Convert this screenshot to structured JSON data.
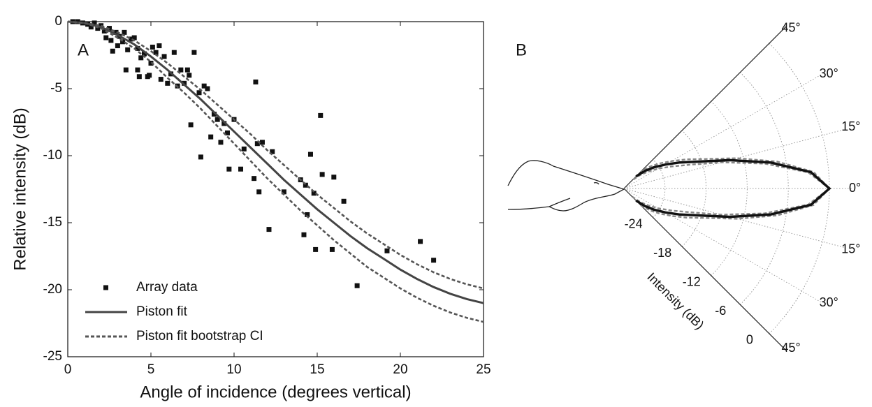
{
  "chart_data": [
    {
      "type": "line",
      "label": "A",
      "xlabel": "Angle of incidence (degrees vertical)",
      "ylabel": "Relative intensity (dB)",
      "xlim": [
        0,
        25
      ],
      "ylim": [
        -25,
        0
      ],
      "xticks": [
        0,
        5,
        10,
        15,
        20,
        25
      ],
      "yticks": [
        0,
        -5,
        -10,
        -15,
        -20,
        -25
      ],
      "legend": "lower left",
      "series": [
        {
          "name": "Array data",
          "color": "#111111",
          "style": "markers",
          "x": [
            0.3,
            0.6,
            0.9,
            1.2,
            1.4,
            1.6,
            1.8,
            2.0,
            2.2,
            2.3,
            2.5,
            2.6,
            2.7,
            2.9,
            3.0,
            3.1,
            3.3,
            3.4,
            3.5,
            3.6,
            3.8,
            4.0,
            4.2,
            4.2,
            4.3,
            4.4,
            4.6,
            4.8,
            4.9,
            5.0,
            5.1,
            5.3,
            5.5,
            5.6,
            5.8,
            6.0,
            6.2,
            6.4,
            6.6,
            6.8,
            7.0,
            7.2,
            7.3,
            7.4,
            7.6,
            7.9,
            8.0,
            8.2,
            8.4,
            8.6,
            8.8,
            9.0,
            9.2,
            9.4,
            9.6,
            9.7,
            10.0,
            10.4,
            10.6,
            11.2,
            11.3,
            11.4,
            11.5,
            11.7,
            12.1,
            12.3,
            13.0,
            14.0,
            14.2,
            14.3,
            14.4,
            14.6,
            14.8,
            14.9,
            15.2,
            15.3,
            15.9,
            16.0,
            16.6,
            17.4,
            19.2,
            21.2,
            22.0
          ],
          "values": [
            0,
            0,
            -0.1,
            -0.2,
            -0.4,
            -0.1,
            -0.5,
            -0.3,
            -0.7,
            -1.2,
            -0.5,
            -1.4,
            -2.2,
            -0.8,
            -1.8,
            -1.1,
            -1.5,
            -0.8,
            -3.6,
            -2.1,
            -1.3,
            -1.2,
            -2.0,
            -3.6,
            -4.1,
            -2.7,
            -2.4,
            -4.1,
            -4.0,
            -3.1,
            -1.9,
            -2.3,
            -1.8,
            -4.3,
            -2.6,
            -4.6,
            -3.9,
            -2.3,
            -4.8,
            -3.6,
            -4.6,
            -3.6,
            -4.0,
            -7.7,
            -2.3,
            -5.3,
            -10.1,
            -4.8,
            -5.0,
            -8.6,
            -6.9,
            -7.3,
            -9.0,
            -7.6,
            -8.3,
            -11.0,
            -7.3,
            -11.0,
            -9.5,
            -11.7,
            -4.5,
            -9.1,
            -12.7,
            -9.0,
            -15.5,
            -9.7,
            -12.7,
            -11.8,
            -15.9,
            -12.2,
            -14.4,
            -9.9,
            -12.8,
            -17.0,
            -7.0,
            -11.4,
            -17.0,
            -11.6,
            -13.4,
            -19.7,
            -17.1,
            -16.4,
            -17.8
          ]
        },
        {
          "name": "Piston fit",
          "color": "#444444",
          "style": "solid",
          "x": [
            0,
            1,
            2,
            3,
            4,
            5,
            6,
            7,
            8,
            9,
            10,
            11,
            12,
            13,
            14,
            15,
            16,
            17,
            18,
            19,
            20,
            21,
            22,
            23,
            24,
            25
          ],
          "values": [
            0,
            -0.1,
            -0.4,
            -1.0,
            -1.7,
            -2.6,
            -3.6,
            -4.7,
            -5.8,
            -7.0,
            -8.2,
            -9.4,
            -10.6,
            -11.8,
            -12.9,
            -14.0,
            -15.0,
            -16.0,
            -16.9,
            -17.7,
            -18.5,
            -19.2,
            -19.8,
            -20.3,
            -20.7,
            -21.0
          ]
        },
        {
          "name": "Piston fit bootstrap CI",
          "color": "#555555",
          "style": "dashed",
          "x": [
            0,
            1,
            2,
            3,
            4,
            5,
            6,
            7,
            8,
            9,
            10,
            11,
            12,
            13,
            14,
            15,
            16,
            17,
            18,
            19,
            20,
            21,
            22,
            23,
            24,
            25
          ],
          "values": [
            0,
            -0.1,
            -0.3,
            -0.8,
            -1.4,
            -2.2,
            -3.1,
            -4.1,
            -5.1,
            -6.2,
            -7.3,
            -8.4,
            -9.6,
            -10.7,
            -11.8,
            -12.9,
            -13.9,
            -14.9,
            -15.8,
            -16.6,
            -17.4,
            -18.1,
            -18.7,
            -19.2,
            -19.6,
            -19.9
          ],
          "lower": [
            0,
            -0.1,
            -0.5,
            -1.2,
            -2.0,
            -3.0,
            -4.2,
            -5.3,
            -6.5,
            -7.8,
            -9.1,
            -10.4,
            -11.7,
            -12.9,
            -14.1,
            -15.2,
            -16.3,
            -17.3,
            -18.3,
            -19.1,
            -19.9,
            -20.6,
            -21.2,
            -21.7,
            -22.1,
            -22.4
          ]
        }
      ]
    },
    {
      "type": "polar",
      "label": "B",
      "rlabel": "Intensity (dB)",
      "rlim": [
        -30,
        0
      ],
      "rticks": [
        -24,
        -18,
        -12,
        -6,
        0
      ],
      "thetalim": [
        -45,
        45
      ],
      "thetaticks": [
        {
          "value": 45,
          "label": "45°"
        },
        {
          "value": 30,
          "label": "30°"
        },
        {
          "value": 15,
          "label": "15°"
        },
        {
          "value": 0,
          "label": "0°"
        },
        {
          "value": -15,
          "label": "15°"
        },
        {
          "value": -30,
          "label": "30°"
        },
        {
          "value": -45,
          "label": "45°"
        }
      ],
      "theta": [
        -45,
        -40,
        -35,
        -30,
        -25,
        -20,
        -15,
        -10,
        -5,
        0,
        5,
        10,
        15,
        20,
        25,
        30,
        35,
        40,
        45
      ],
      "series": [
        {
          "color": "#888888",
          "style": "dashed",
          "values": [
            -26.5,
            -25,
            -23.6,
            -22,
            -19.9,
            -17.4,
            -12.9,
            -7.3,
            -2.2,
            0,
            -2.2,
            -7.3,
            -12.9,
            -17.4,
            -19.9,
            -22,
            -23.6,
            -25,
            -26.5
          ]
        },
        {
          "color": "#888888",
          "style": "dashed",
          "values": [
            -28.3,
            -27,
            -25.7,
            -24.2,
            -22.4,
            -19.9,
            -15.2,
            -9.1,
            -3.0,
            0,
            -3.0,
            -9.1,
            -15.2,
            -19.9,
            -22.4,
            -24.2,
            -25.7,
            -27,
            -28.3
          ]
        },
        {
          "color": "#111111",
          "style": "solid",
          "values": [
            -27.5,
            -26,
            -24.6,
            -23,
            -21,
            -18.5,
            -14,
            -8.2,
            -2.6,
            0,
            -2.6,
            -8.2,
            -14,
            -18.5,
            -21,
            -23,
            -24.6,
            -26,
            -27.5
          ]
        }
      ]
    }
  ]
}
